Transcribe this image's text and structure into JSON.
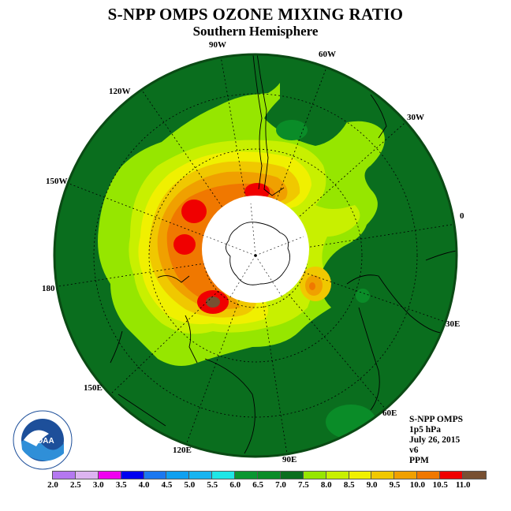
{
  "header": {
    "title": "S-NPP OMPS OZONE MIXING RATIO",
    "subtitle": "Southern Hemisphere"
  },
  "longitude_labels": [
    "90W",
    "60W",
    "120W",
    "30W",
    "150W",
    "0",
    "180",
    "30E",
    "150E",
    "60E",
    "120E",
    "90E"
  ],
  "info": {
    "instrument": "S-NPP OMPS",
    "level": "1p5 hPa",
    "date": "July 26, 2015",
    "version": "v6",
    "units": "PPM"
  },
  "colorbar": {
    "ticks": [
      "2.0",
      "2.5",
      "3.0",
      "3.5",
      "4.0",
      "4.5",
      "5.0",
      "5.5",
      "6.0",
      "6.5",
      "7.0",
      "7.5",
      "8.0",
      "8.5",
      "9.0",
      "9.5",
      "10.0",
      "10.5",
      "11.0"
    ],
    "colors": [
      "#b478f0",
      "#dcb4f0",
      "#f000f0",
      "#0000f0",
      "#1c78f0",
      "#10a0f0",
      "#18b4f0",
      "#1ee6e6",
      "#0a9632",
      "#0a8c28",
      "#0a6e1e",
      "#96e600",
      "#c8f000",
      "#f0f000",
      "#f0c800",
      "#f0a000",
      "#f07800",
      "#f00000",
      "#785032"
    ]
  },
  "logo": {
    "text": "NOAA",
    "icon": "noaa-logo-icon"
  }
}
